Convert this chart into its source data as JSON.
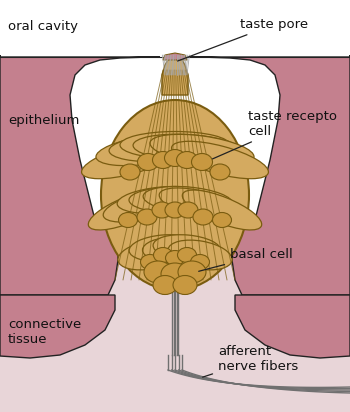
{
  "fig_width": 3.5,
  "fig_height": 4.12,
  "dpi": 100,
  "bg_white": "#ffffff",
  "epithelium_color": "#c4808e",
  "connective_tissue_color": "#e8d5d8",
  "taste_bud_fill": "#d4aa60",
  "taste_bud_edge": "#7a5c10",
  "cell_fill": "#d4aa60",
  "cell_edge": "#7a5c10",
  "nucleus_fill": "#c89840",
  "nucleus_edge": "#7a5c10",
  "nerve_color": "#707070",
  "hair_color": "#aaaaaa",
  "outline_color": "#222222",
  "text_color": "#111111",
  "label_fontsize": 9.5,
  "labels": {
    "oral_cavity": "oral cavity",
    "taste_pore": "taste pore",
    "epithelium": "epithelium",
    "taste_receptor_cell": "taste recepto\ncell",
    "basal_cell": "basal cell",
    "connective_tissue": "connective\ntissue",
    "afferent_nerve_fibers": "afferent\nnerve fibers"
  }
}
